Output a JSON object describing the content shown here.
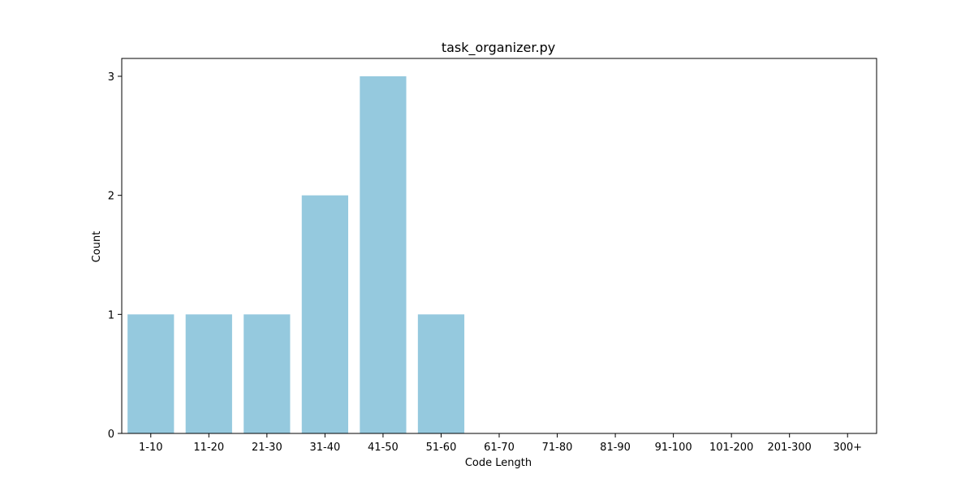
{
  "chart_data": {
    "type": "bar",
    "title": "task_organizer.py",
    "xlabel": "Code Length",
    "ylabel": "Count",
    "categories": [
      "1-10",
      "11-20",
      "21-30",
      "31-40",
      "41-50",
      "51-60",
      "61-70",
      "71-80",
      "81-90",
      "91-100",
      "101-200",
      "201-300",
      "300+"
    ],
    "values": [
      1,
      1,
      1,
      2,
      3,
      1,
      0,
      0,
      0,
      0,
      0,
      0,
      0
    ],
    "ylim": [
      0,
      3.15
    ],
    "yticks": [
      0,
      1,
      2,
      3
    ],
    "grid": false,
    "legend": "none",
    "colors": {
      "bar": "#95c9de",
      "axis": "#000000",
      "background": "#ffffff"
    }
  }
}
